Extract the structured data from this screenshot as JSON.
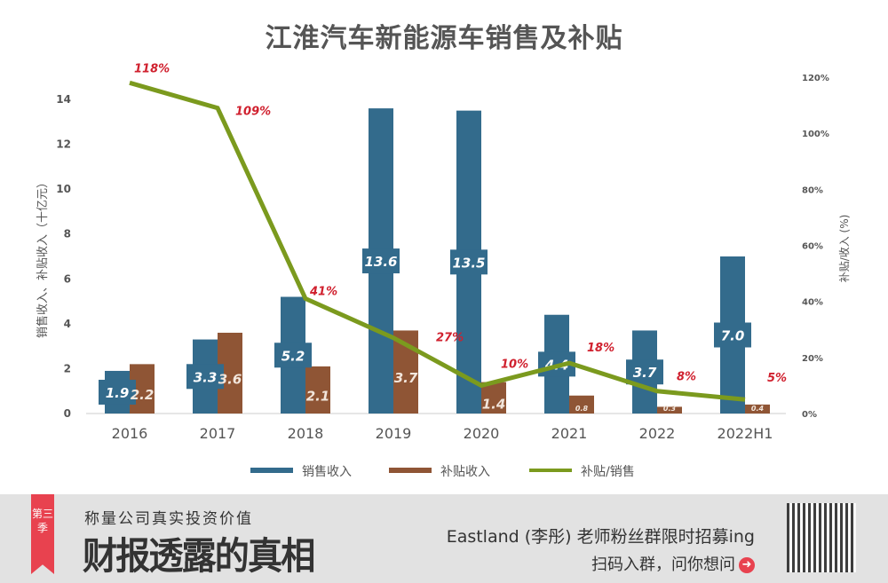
{
  "chart_data": {
    "type": "bar+line",
    "title": "江淮汽车新能源车销售及补贴",
    "categories": [
      "2016",
      "2017",
      "2018",
      "2019",
      "2020",
      "2021",
      "2022",
      "2022H1"
    ],
    "series": [
      {
        "name": "销售收入",
        "type": "bar",
        "axis": "left",
        "color": "#336b8c",
        "values": [
          1.9,
          3.3,
          5.2,
          13.6,
          13.5,
          4.4,
          3.7,
          7.0
        ]
      },
      {
        "name": "补贴收入",
        "type": "bar",
        "axis": "left",
        "color": "#8f5535",
        "values": [
          2.2,
          3.6,
          2.1,
          3.7,
          1.4,
          0.8,
          0.3,
          0.4
        ]
      },
      {
        "name": "补贴/销售",
        "type": "line",
        "axis": "right",
        "color": "#7b9a1e",
        "values": [
          118,
          109,
          41,
          27,
          10,
          18,
          8,
          5
        ]
      }
    ],
    "ylabel": "销售收入、补贴收入（十亿元）",
    "y2label": "补贴/收入 (%)",
    "ylim": [
      0,
      14
    ],
    "yticks": [
      "0",
      "2",
      "4",
      "6",
      "8",
      "10",
      "12",
      "14"
    ],
    "y2lim": [
      0,
      120
    ],
    "y2ticks": [
      "0%",
      "20%",
      "40%",
      "60%",
      "80%",
      "100%",
      "120%"
    ],
    "legend_position": "bottom",
    "grid": false
  },
  "banner": {
    "ribbon": "第三季",
    "slogan": "称量公司真实投资价值",
    "title": "财报透露的真相",
    "recruit": "Eastland (李彤) 老师粉丝群限时招募ing",
    "scan": "扫码入群，问你想问",
    "arrow_icon": "arrow-right-circle-icon"
  }
}
